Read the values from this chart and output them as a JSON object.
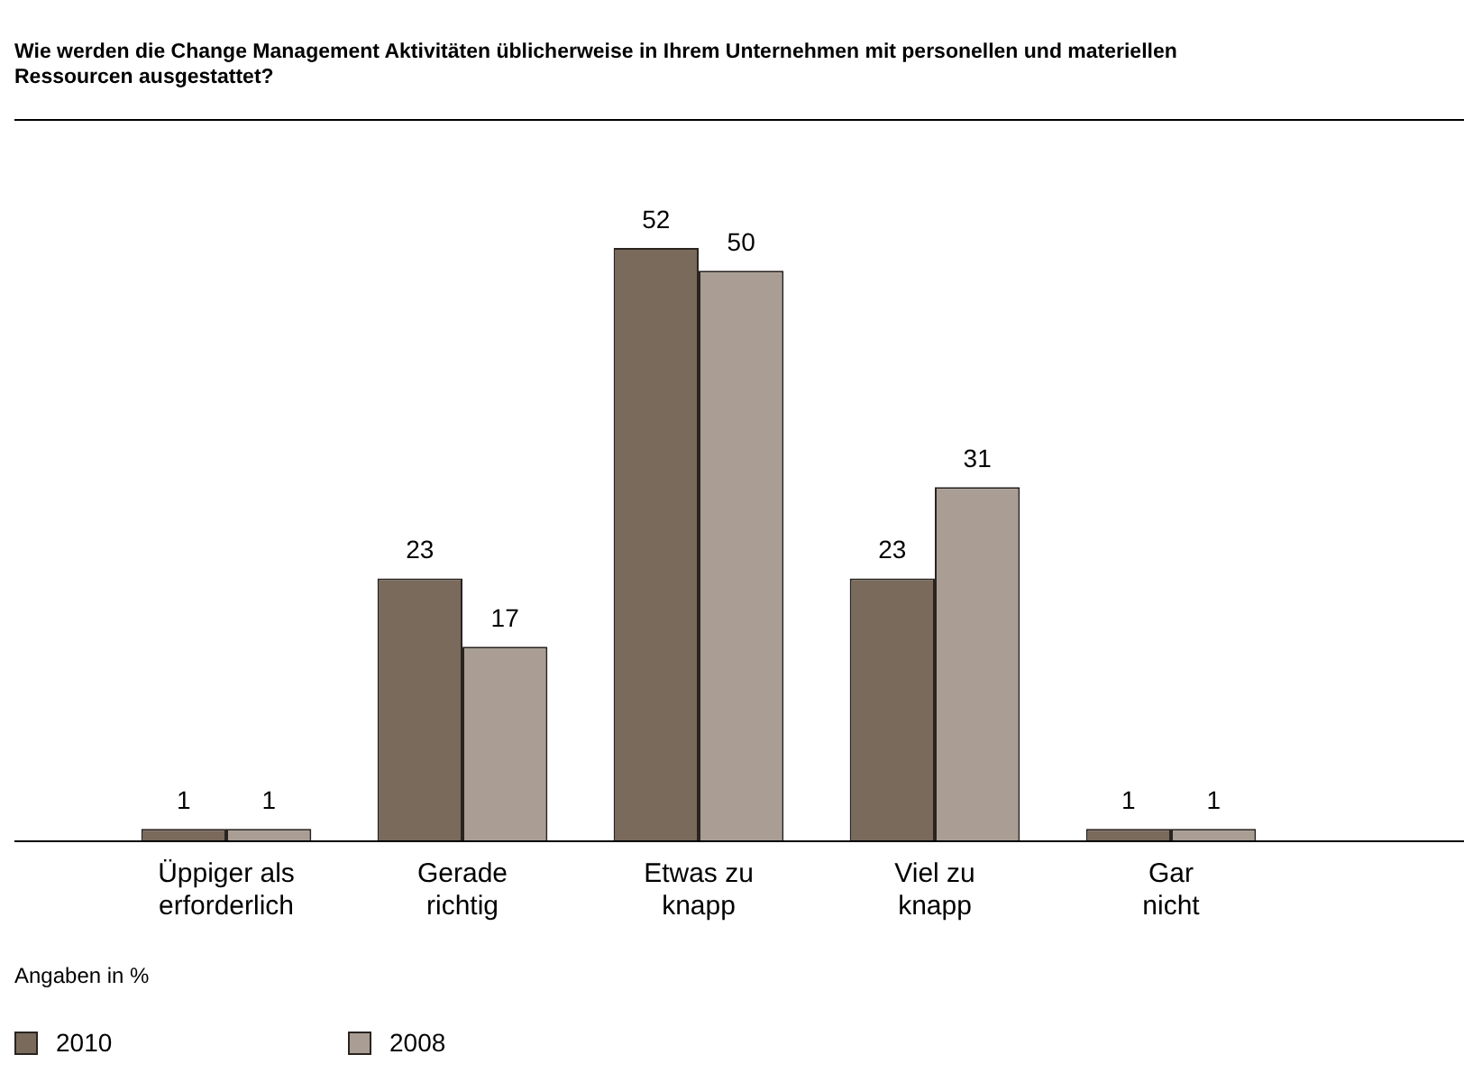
{
  "chart_data": {
    "type": "bar",
    "title": "Wie werden die Change Management Aktivitäten üblicherweise in Ihrem Unternehmen mit personellen und materiellen Ressourcen ausgestattet?",
    "categories": [
      "Üppiger als erforderlich",
      "Gerade richtig",
      "Etwas zu knapp",
      "Viel zu knapp",
      "Gar nicht"
    ],
    "series": [
      {
        "name": "2010",
        "color": "#7a6a5c",
        "values": [
          1,
          23,
          52,
          23,
          1
        ]
      },
      {
        "name": "2008",
        "color": "#aa9e94",
        "values": [
          1,
          17,
          50,
          31,
          1
        ]
      }
    ],
    "data_labels": true,
    "legend": "bottom left",
    "grid": false,
    "annotations": [
      "Angaben in %"
    ]
  }
}
